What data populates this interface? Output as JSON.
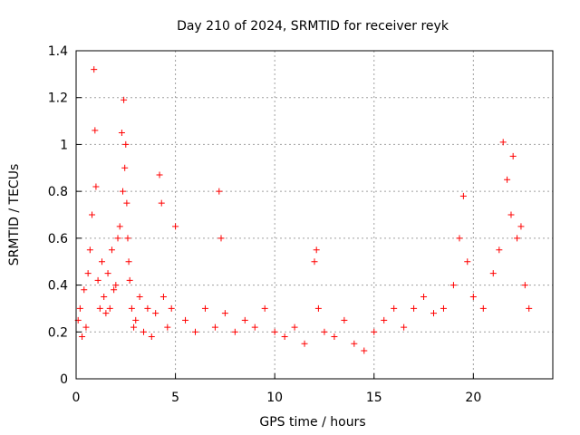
{
  "chart_data": {
    "type": "scatter",
    "title": "Day 210 of 2024, SRMTID for receiver reyk",
    "xlabel": "GPS time / hours",
    "ylabel": "SRMTID / TECUs",
    "xlim": [
      0,
      24
    ],
    "ylim": [
      0,
      1.4
    ],
    "x_ticks": [
      "0",
      "5",
      "10",
      "15",
      "20"
    ],
    "y_ticks": [
      "0",
      "0.2",
      "0.4",
      "0.6",
      "0.8",
      "1",
      "1.2",
      "1.4"
    ],
    "grid": true,
    "marker": "+",
    "color": "#ff0000",
    "series": [
      {
        "name": "SRMTID",
        "x": [
          0.1,
          0.2,
          0.3,
          0.4,
          0.5,
          0.6,
          0.7,
          0.8,
          0.9,
          0.95,
          1.0,
          1.1,
          1.2,
          1.3,
          1.4,
          1.5,
          1.6,
          1.7,
          1.8,
          1.9,
          2.0,
          2.1,
          2.2,
          2.3,
          2.35,
          2.4,
          2.45,
          2.5,
          2.55,
          2.6,
          2.65,
          2.7,
          2.8,
          2.9,
          3.0,
          3.2,
          3.4,
          3.6,
          3.8,
          4.0,
          4.2,
          4.3,
          4.4,
          4.6,
          4.8,
          5.0,
          5.5,
          6.0,
          6.5,
          7.0,
          7.2,
          7.3,
          7.5,
          8.0,
          8.5,
          9.0,
          9.5,
          10.0,
          10.5,
          11.0,
          11.5,
          12.0,
          12.1,
          12.2,
          12.5,
          13.0,
          13.5,
          14.0,
          14.5,
          15.0,
          15.5,
          16.0,
          16.5,
          17.0,
          17.5,
          18.0,
          18.5,
          19.0,
          19.3,
          19.5,
          19.7,
          20.0,
          20.5,
          21.0,
          21.3,
          21.5,
          21.7,
          21.9,
          22.0,
          22.2,
          22.4,
          22.6,
          22.8
        ],
        "y": [
          0.25,
          0.3,
          0.18,
          0.38,
          0.22,
          0.45,
          0.55,
          0.7,
          1.32,
          1.06,
          0.82,
          0.42,
          0.3,
          0.5,
          0.35,
          0.28,
          0.45,
          0.3,
          0.55,
          0.38,
          0.4,
          0.6,
          0.65,
          1.05,
          0.8,
          1.19,
          0.9,
          1.0,
          0.75,
          0.6,
          0.5,
          0.42,
          0.3,
          0.22,
          0.25,
          0.35,
          0.2,
          0.3,
          0.18,
          0.28,
          0.87,
          0.75,
          0.35,
          0.22,
          0.3,
          0.65,
          0.25,
          0.2,
          0.3,
          0.22,
          0.8,
          0.6,
          0.28,
          0.2,
          0.25,
          0.22,
          0.3,
          0.2,
          0.18,
          0.22,
          0.15,
          0.5,
          0.55,
          0.3,
          0.2,
          0.18,
          0.25,
          0.15,
          0.12,
          0.2,
          0.25,
          0.3,
          0.22,
          0.3,
          0.35,
          0.28,
          0.3,
          0.4,
          0.6,
          0.78,
          0.5,
          0.35,
          0.3,
          0.45,
          0.55,
          1.01,
          0.85,
          0.7,
          0.95,
          0.6,
          0.65,
          0.4,
          0.3
        ]
      }
    ]
  }
}
